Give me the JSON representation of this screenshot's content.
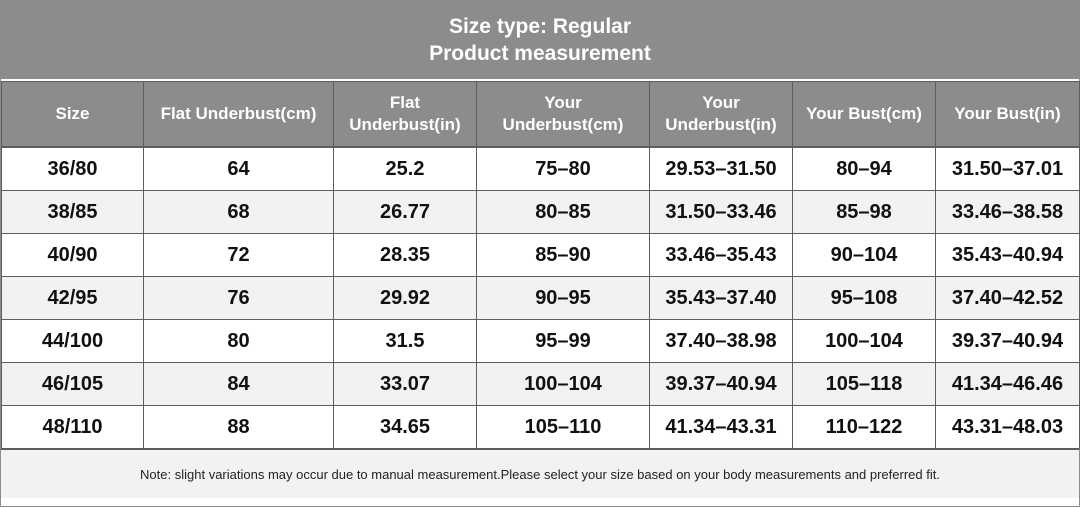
{
  "title": {
    "line1": "Size type: Regular",
    "line2": "Product measurement"
  },
  "columns": [
    {
      "l1": "Size",
      "l2": ""
    },
    {
      "l1": "Flat Underbust(cm)",
      "l2": ""
    },
    {
      "l1": "Flat",
      "l2": "Underbust(in)"
    },
    {
      "l1": "Your",
      "l2": "Underbust(cm)"
    },
    {
      "l1": "Your",
      "l2": "Underbust(in)"
    },
    {
      "l1": "Your Bust(cm)",
      "l2": ""
    },
    {
      "l1": "Your Bust(in)",
      "l2": ""
    }
  ],
  "rows": [
    [
      "36/80",
      "64",
      "25.2",
      "75–80",
      "29.53–31.50",
      "80–94",
      "31.50–37.01"
    ],
    [
      "38/85",
      "68",
      "26.77",
      "80–85",
      "31.50–33.46",
      "85–98",
      "33.46–38.58"
    ],
    [
      "40/90",
      "72",
      "28.35",
      "85–90",
      "33.46–35.43",
      "90–104",
      "35.43–40.94"
    ],
    [
      "42/95",
      "76",
      "29.92",
      "90–95",
      "35.43–37.40",
      "95–108",
      "37.40–42.52"
    ],
    [
      "44/100",
      "80",
      "31.5",
      "95–99",
      "37.40–38.98",
      "100–104",
      "39.37–40.94"
    ],
    [
      "46/105",
      "84",
      "33.07",
      "100–104",
      "39.37–40.94",
      "105–118",
      "41.34–46.46"
    ],
    [
      "48/110",
      "88",
      "34.65",
      "105–110",
      "41.34–43.31",
      "110–122",
      "43.31–48.03"
    ]
  ],
  "note": "Note: slight variations may occur due to manual measurement.Please select your size based on your body measurements and preferred fit."
}
